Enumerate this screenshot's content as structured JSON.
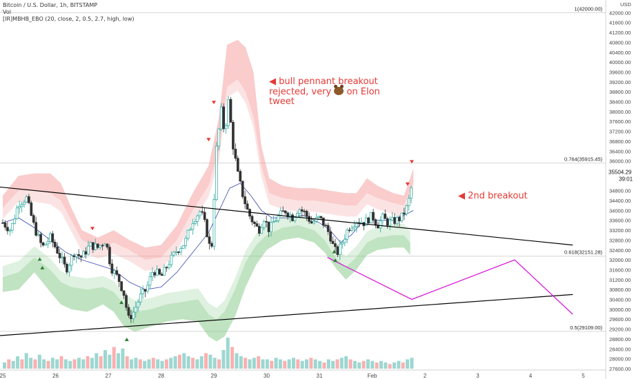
{
  "legend": {
    "title": "Bitcoin / U.S. Dollar, 1h, BITSTAMP",
    "vol": "Vol",
    "indicator": "[IR]MBHB_EBO (20, close, 2, 0.5, 2.7, high, low)"
  },
  "annotations": {
    "bull_pennant": [
      "◀ bull pennant breakout",
      "rejected, very",
      "on Elon",
      "tweet"
    ],
    "second_breakout": "◀  2nd breakout"
  },
  "colors": {
    "up": "#26a69a",
    "down": "#333333",
    "upper_band": "#f8b4b4",
    "lower_band": "#a5d6a7",
    "projection": "#d81bd8",
    "trendline": "#000000",
    "sell_marker": "#e53935",
    "buy_marker": "#2e7d32"
  },
  "chart_data": {
    "type": "candlestick",
    "currency_label": "USD",
    "ylim": [
      27600,
      42400
    ],
    "y_ticks": [
      "42000.00",
      "41600.00",
      "41200.00",
      "40800.00",
      "40400.00",
      "40000.00",
      "39600.00",
      "39200.00",
      "38800.00",
      "38400.00",
      "38000.00",
      "37600.00",
      "37200.00",
      "36800.00",
      "36400.00",
      "36000.00",
      "35600.00",
      "35200.00",
      "34800.00",
      "34400.00",
      "34000.00",
      "33600.00",
      "33200.00",
      "32800.00",
      "32400.00",
      "32000.00",
      "31600.00",
      "31200.00",
      "30800.00",
      "30400.00",
      "30000.00",
      "29600.00",
      "29200.00",
      "28800.00",
      "28400.00",
      "28000.00",
      "27600.00"
    ],
    "x_ticks": [
      {
        "label": "25",
        "x": 0
      },
      {
        "label": "26",
        "x": 1
      },
      {
        "label": "27",
        "x": 2
      },
      {
        "label": "28",
        "x": 3
      },
      {
        "label": "29",
        "x": 4
      },
      {
        "label": "30",
        "x": 5
      },
      {
        "label": "31",
        "x": 6
      },
      {
        "label": "Feb",
        "x": 7
      },
      {
        "label": "2",
        "x": 8
      },
      {
        "label": "3",
        "x": 9
      },
      {
        "label": "4",
        "x": 10
      },
      {
        "label": "5",
        "x": 11
      }
    ],
    "fib_levels": [
      {
        "label": "1(42000.00)",
        "value": 42000
      },
      {
        "label": "0.764(35915.45)",
        "value": 35915.45
      },
      {
        "label": "0.618(32151.28)",
        "value": 32151.28
      },
      {
        "label": "0.5(29109.00)",
        "value": 29109
      }
    ],
    "current_price": {
      "label": "35504.29",
      "countdown": "39:01",
      "value": 35504.29
    },
    "price_path": [
      [
        0.0,
        33500
      ],
      [
        0.15,
        33200
      ],
      [
        0.3,
        34300
      ],
      [
        0.45,
        34500
      ],
      [
        0.6,
        33300
      ],
      [
        0.75,
        32500
      ],
      [
        0.9,
        32900
      ],
      [
        1.05,
        32300
      ],
      [
        1.2,
        31600
      ],
      [
        1.35,
        32300
      ],
      [
        1.5,
        32100
      ],
      [
        1.65,
        32600
      ],
      [
        1.8,
        32500
      ],
      [
        1.95,
        32800
      ],
      [
        2.05,
        31700
      ],
      [
        2.2,
        31200
      ],
      [
        2.3,
        30600
      ],
      [
        2.38,
        29600
      ],
      [
        2.48,
        29900
      ],
      [
        2.6,
        30500
      ],
      [
        2.72,
        30800
      ],
      [
        2.85,
        31600
      ],
      [
        3.0,
        31300
      ],
      [
        3.15,
        31900
      ],
      [
        3.3,
        32400
      ],
      [
        3.45,
        32700
      ],
      [
        3.6,
        33600
      ],
      [
        3.75,
        34000
      ],
      [
        3.85,
        33300
      ],
      [
        3.95,
        32200
      ],
      [
        4.05,
        36500
      ],
      [
        4.15,
        38200
      ],
      [
        4.2,
        37000
      ],
      [
        4.28,
        38500
      ],
      [
        4.35,
        36800
      ],
      [
        4.45,
        35500
      ],
      [
        4.55,
        34600
      ],
      [
        4.65,
        33900
      ],
      [
        4.75,
        33500
      ],
      [
        4.85,
        33200
      ],
      [
        4.95,
        33700
      ],
      [
        5.05,
        33200
      ],
      [
        5.15,
        33600
      ],
      [
        5.25,
        33800
      ],
      [
        5.35,
        34000
      ],
      [
        5.5,
        33700
      ],
      [
        5.6,
        34100
      ],
      [
        5.72,
        33900
      ],
      [
        5.85,
        33500
      ],
      [
        6.0,
        33700
      ],
      [
        6.1,
        33400
      ],
      [
        6.2,
        33000
      ],
      [
        6.28,
        32400
      ],
      [
        6.35,
        32300
      ],
      [
        6.45,
        32800
      ],
      [
        6.55,
        33300
      ],
      [
        6.7,
        33600
      ],
      [
        6.85,
        33500
      ],
      [
        7.0,
        33800
      ],
      [
        7.1,
        33400
      ],
      [
        7.2,
        33700
      ],
      [
        7.3,
        33500
      ],
      [
        7.45,
        33600
      ],
      [
        7.55,
        33700
      ],
      [
        7.65,
        34100
      ],
      [
        7.72,
        34600
      ],
      [
        7.78,
        35500
      ]
    ],
    "upper_band_outer": [
      [
        0.0,
        34600
      ],
      [
        0.3,
        35400
      ],
      [
        0.6,
        35500
      ],
      [
        0.9,
        35500
      ],
      [
        1.1,
        35100
      ],
      [
        1.3,
        34100
      ],
      [
        1.5,
        33200
      ],
      [
        1.8,
        32900
      ],
      [
        2.1,
        33200
      ],
      [
        2.4,
        32800
      ],
      [
        2.7,
        32500
      ],
      [
        3.0,
        32600
      ],
      [
        3.3,
        33400
      ],
      [
        3.6,
        34700
      ],
      [
        3.9,
        35800
      ],
      [
        4.1,
        37800
      ],
      [
        4.25,
        40700
      ],
      [
        4.45,
        40900
      ],
      [
        4.6,
        40600
      ],
      [
        4.75,
        39600
      ],
      [
        4.9,
        36600
      ],
      [
        5.05,
        35300
      ],
      [
        5.3,
        35000
      ],
      [
        5.6,
        34900
      ],
      [
        5.9,
        34900
      ],
      [
        6.2,
        34800
      ],
      [
        6.5,
        34700
      ],
      [
        6.7,
        34700
      ],
      [
        6.9,
        35300
      ],
      [
        7.1,
        35000
      ],
      [
        7.4,
        34700
      ],
      [
        7.6,
        34600
      ],
      [
        7.7,
        35200
      ],
      [
        7.78,
        35700
      ]
    ],
    "upper_band_inner": [
      [
        0.0,
        34100
      ],
      [
        0.3,
        34800
      ],
      [
        0.6,
        34800
      ],
      [
        0.9,
        34700
      ],
      [
        1.1,
        34400
      ],
      [
        1.3,
        33600
      ],
      [
        1.5,
        32800
      ],
      [
        1.8,
        32500
      ],
      [
        2.1,
        32700
      ],
      [
        2.4,
        32400
      ],
      [
        2.7,
        32000
      ],
      [
        3.0,
        32100
      ],
      [
        3.3,
        32800
      ],
      [
        3.6,
        34000
      ],
      [
        3.9,
        35000
      ],
      [
        4.1,
        36500
      ],
      [
        4.25,
        39000
      ],
      [
        4.45,
        39300
      ],
      [
        4.6,
        38800
      ],
      [
        4.75,
        37800
      ],
      [
        4.9,
        35800
      ],
      [
        5.05,
        34700
      ],
      [
        5.3,
        34500
      ],
      [
        5.6,
        34400
      ],
      [
        5.9,
        34400
      ],
      [
        6.2,
        34300
      ],
      [
        6.5,
        34200
      ],
      [
        6.7,
        34200
      ],
      [
        6.9,
        34700
      ],
      [
        7.1,
        34500
      ],
      [
        7.4,
        34300
      ],
      [
        7.6,
        34200
      ],
      [
        7.7,
        34700
      ],
      [
        7.78,
        35100
      ]
    ],
    "lower_band_inner": [
      [
        0.0,
        31300
      ],
      [
        0.3,
        31500
      ],
      [
        0.6,
        32100
      ],
      [
        0.9,
        31600
      ],
      [
        1.1,
        31100
      ],
      [
        1.3,
        30900
      ],
      [
        1.6,
        30800
      ],
      [
        1.9,
        30900
      ],
      [
        2.1,
        30700
      ],
      [
        2.3,
        30200
      ],
      [
        2.5,
        29900
      ],
      [
        2.8,
        30000
      ],
      [
        3.1,
        30200
      ],
      [
        3.4,
        30300
      ],
      [
        3.7,
        30400
      ],
      [
        3.9,
        29800
      ],
      [
        4.05,
        29600
      ],
      [
        4.2,
        29900
      ],
      [
        4.4,
        30800
      ],
      [
        4.6,
        31900
      ],
      [
        4.8,
        32600
      ],
      [
        5.0,
        33000
      ],
      [
        5.3,
        33300
      ],
      [
        5.6,
        33400
      ],
      [
        5.9,
        33200
      ],
      [
        6.1,
        32800
      ],
      [
        6.3,
        32100
      ],
      [
        6.5,
        31700
      ],
      [
        6.7,
        32100
      ],
      [
        6.9,
        32700
      ],
      [
        7.1,
        32900
      ],
      [
        7.4,
        33000
      ],
      [
        7.6,
        33000
      ],
      [
        7.72,
        32700
      ]
    ],
    "lower_band_outer": [
      [
        0.0,
        30700
      ],
      [
        0.3,
        30800
      ],
      [
        0.6,
        31500
      ],
      [
        0.9,
        30700
      ],
      [
        1.1,
        30200
      ],
      [
        1.3,
        30000
      ],
      [
        1.6,
        29900
      ],
      [
        1.9,
        30200
      ],
      [
        2.1,
        29900
      ],
      [
        2.3,
        29300
      ],
      [
        2.5,
        29100
      ],
      [
        2.8,
        29300
      ],
      [
        3.1,
        29500
      ],
      [
        3.4,
        29600
      ],
      [
        3.7,
        29500
      ],
      [
        3.9,
        28900
      ],
      [
        4.05,
        28700
      ],
      [
        4.2,
        28900
      ],
      [
        4.4,
        29700
      ],
      [
        4.6,
        30900
      ],
      [
        4.8,
        31800
      ],
      [
        5.0,
        32400
      ],
      [
        5.3,
        32800
      ],
      [
        5.6,
        32900
      ],
      [
        5.9,
        32700
      ],
      [
        6.1,
        32300
      ],
      [
        6.3,
        31700
      ],
      [
        6.5,
        31200
      ],
      [
        6.7,
        31600
      ],
      [
        6.9,
        32200
      ],
      [
        7.1,
        32400
      ],
      [
        7.4,
        32500
      ],
      [
        7.6,
        32500
      ],
      [
        7.72,
        32200
      ]
    ],
    "moving_average": [
      [
        0.0,
        33500
      ],
      [
        0.3,
        33700
      ],
      [
        0.6,
        33300
      ],
      [
        0.9,
        32800
      ],
      [
        1.2,
        32300
      ],
      [
        1.5,
        32000
      ],
      [
        1.8,
        31800
      ],
      [
        2.1,
        31600
      ],
      [
        2.4,
        31100
      ],
      [
        2.7,
        30800
      ],
      [
        3.0,
        30900
      ],
      [
        3.3,
        31500
      ],
      [
        3.6,
        32300
      ],
      [
        3.9,
        33100
      ],
      [
        4.1,
        34000
      ],
      [
        4.3,
        34900
      ],
      [
        4.5,
        35100
      ],
      [
        4.7,
        34600
      ],
      [
        4.9,
        34000
      ],
      [
        5.1,
        33700
      ],
      [
        5.4,
        33700
      ],
      [
        5.7,
        33800
      ],
      [
        6.0,
        33500
      ],
      [
        6.2,
        33200
      ],
      [
        6.4,
        32700
      ],
      [
        6.6,
        33000
      ],
      [
        6.8,
        33500
      ],
      [
        7.0,
        33600
      ],
      [
        7.3,
        33600
      ],
      [
        7.6,
        33800
      ],
      [
        7.78,
        34000
      ]
    ],
    "trendlines": [
      [
        [
          -0.3,
          35000
        ],
        [
          10.8,
          32600
        ]
      ],
      [
        [
          -0.3,
          28900
        ],
        [
          10.8,
          30600
        ]
      ]
    ],
    "projection": [
      [
        6.15,
        32100
      ],
      [
        7.75,
        30400
      ],
      [
        9.7,
        32000
      ],
      [
        10.8,
        29800
      ]
    ],
    "sell_signals": [
      [
        1.7,
        33250
      ],
      [
        4.0,
        38350
      ],
      [
        3.9,
        36850
      ],
      [
        7.75,
        35950
      ],
      [
        7.67,
        35050
      ]
    ],
    "buy_signals": [
      [
        0.7,
        32050
      ],
      [
        0.75,
        31700
      ],
      [
        2.25,
        30300
      ],
      [
        2.35,
        28800
      ],
      [
        6.28,
        32350
      ],
      [
        6.3,
        32000
      ]
    ],
    "volume": [
      0.2,
      0.3,
      0.25,
      0.4,
      0.3,
      0.5,
      0.35,
      0.3,
      0.45,
      0.3,
      0.25,
      0.35,
      0.3,
      0.4,
      0.3,
      0.25,
      0.3,
      0.35,
      0.3,
      0.4,
      0.35,
      0.5,
      0.4,
      0.6,
      0.45,
      0.7,
      0.5,
      0.65,
      0.4,
      0.3,
      0.35,
      0.3,
      0.25,
      0.3,
      0.35,
      0.3,
      0.25,
      0.3,
      0.35,
      0.4,
      0.45,
      0.5,
      0.4,
      0.35,
      0.3,
      0.4,
      0.5,
      0.45,
      0.35,
      0.3,
      0.6,
      1.0,
      0.7,
      0.5,
      0.4,
      0.35,
      0.3,
      0.35,
      0.4,
      0.3,
      0.3,
      0.25,
      0.35,
      0.3,
      0.25,
      0.3,
      0.35,
      0.3,
      0.25,
      0.3,
      0.35,
      0.3,
      0.25,
      0.2,
      0.3,
      0.25,
      0.3,
      0.35,
      0.4,
      0.3,
      0.25,
      0.2,
      0.25,
      0.3,
      0.25,
      0.2,
      0.25,
      0.2,
      0.15,
      0.2,
      0.25,
      0.2,
      0.3,
      0.35
    ]
  }
}
